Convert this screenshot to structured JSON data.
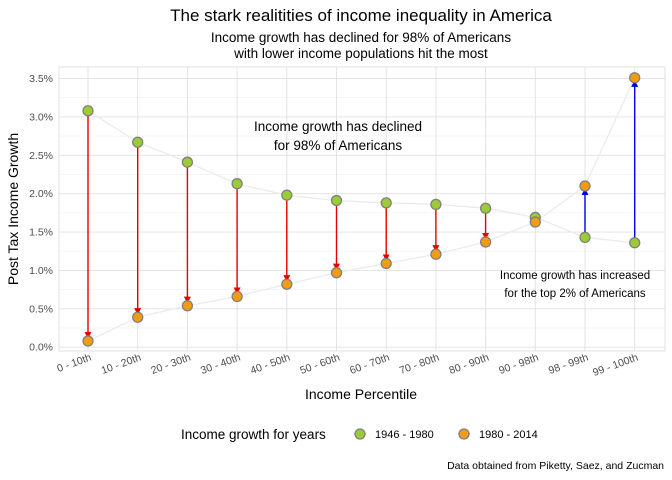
{
  "chart_data": {
    "type": "dumbbell",
    "title": "The stark realitities of income inequality in America",
    "subtitle_lines": [
      "Income growth has declined for 98% of Americans",
      "with lower income populations hit the most"
    ],
    "xlabel": "Income Percentile",
    "ylabel": "Post Tax Income Growth",
    "categories": [
      "0 - 10th",
      "10 - 20th",
      "20 - 30th",
      "30 - 40th",
      "40 - 50th",
      "50 - 60th",
      "60 - 70th",
      "70 - 80th",
      "80 - 90th",
      "90 - 98th",
      "98 - 99th",
      "99 - 100th"
    ],
    "series": [
      {
        "name": "1946 - 1980",
        "color": "#9acd32",
        "values": [
          3.08,
          2.67,
          2.41,
          2.13,
          1.98,
          1.91,
          1.88,
          1.86,
          1.81,
          1.69,
          1.43,
          1.36
        ]
      },
      {
        "name": "1980 - 2014",
        "color": "#f39c12",
        "values": [
          0.08,
          0.39,
          0.54,
          0.66,
          0.82,
          0.97,
          1.09,
          1.21,
          1.37,
          1.63,
          2.1,
          3.51
        ]
      }
    ],
    "decline_color": "#e60000",
    "increase_color": "#0000e6",
    "yticks": [
      "0.0%",
      "0.5%",
      "1.0%",
      "1.5%",
      "2.0%",
      "2.5%",
      "3.0%",
      "3.5%"
    ],
    "ylim": [
      -0.05,
      3.65
    ],
    "grid": true,
    "legend": {
      "title": "Income growth for years",
      "position": "bottom"
    },
    "annotations": [
      {
        "lines": [
          "Income growth has declined",
          "for 98% of Americans"
        ]
      },
      {
        "lines": [
          "Income growth has increased",
          "for the top 2% of Americans"
        ]
      }
    ],
    "caption": "Data obtained from Piketty, Saez, and Zucman"
  }
}
